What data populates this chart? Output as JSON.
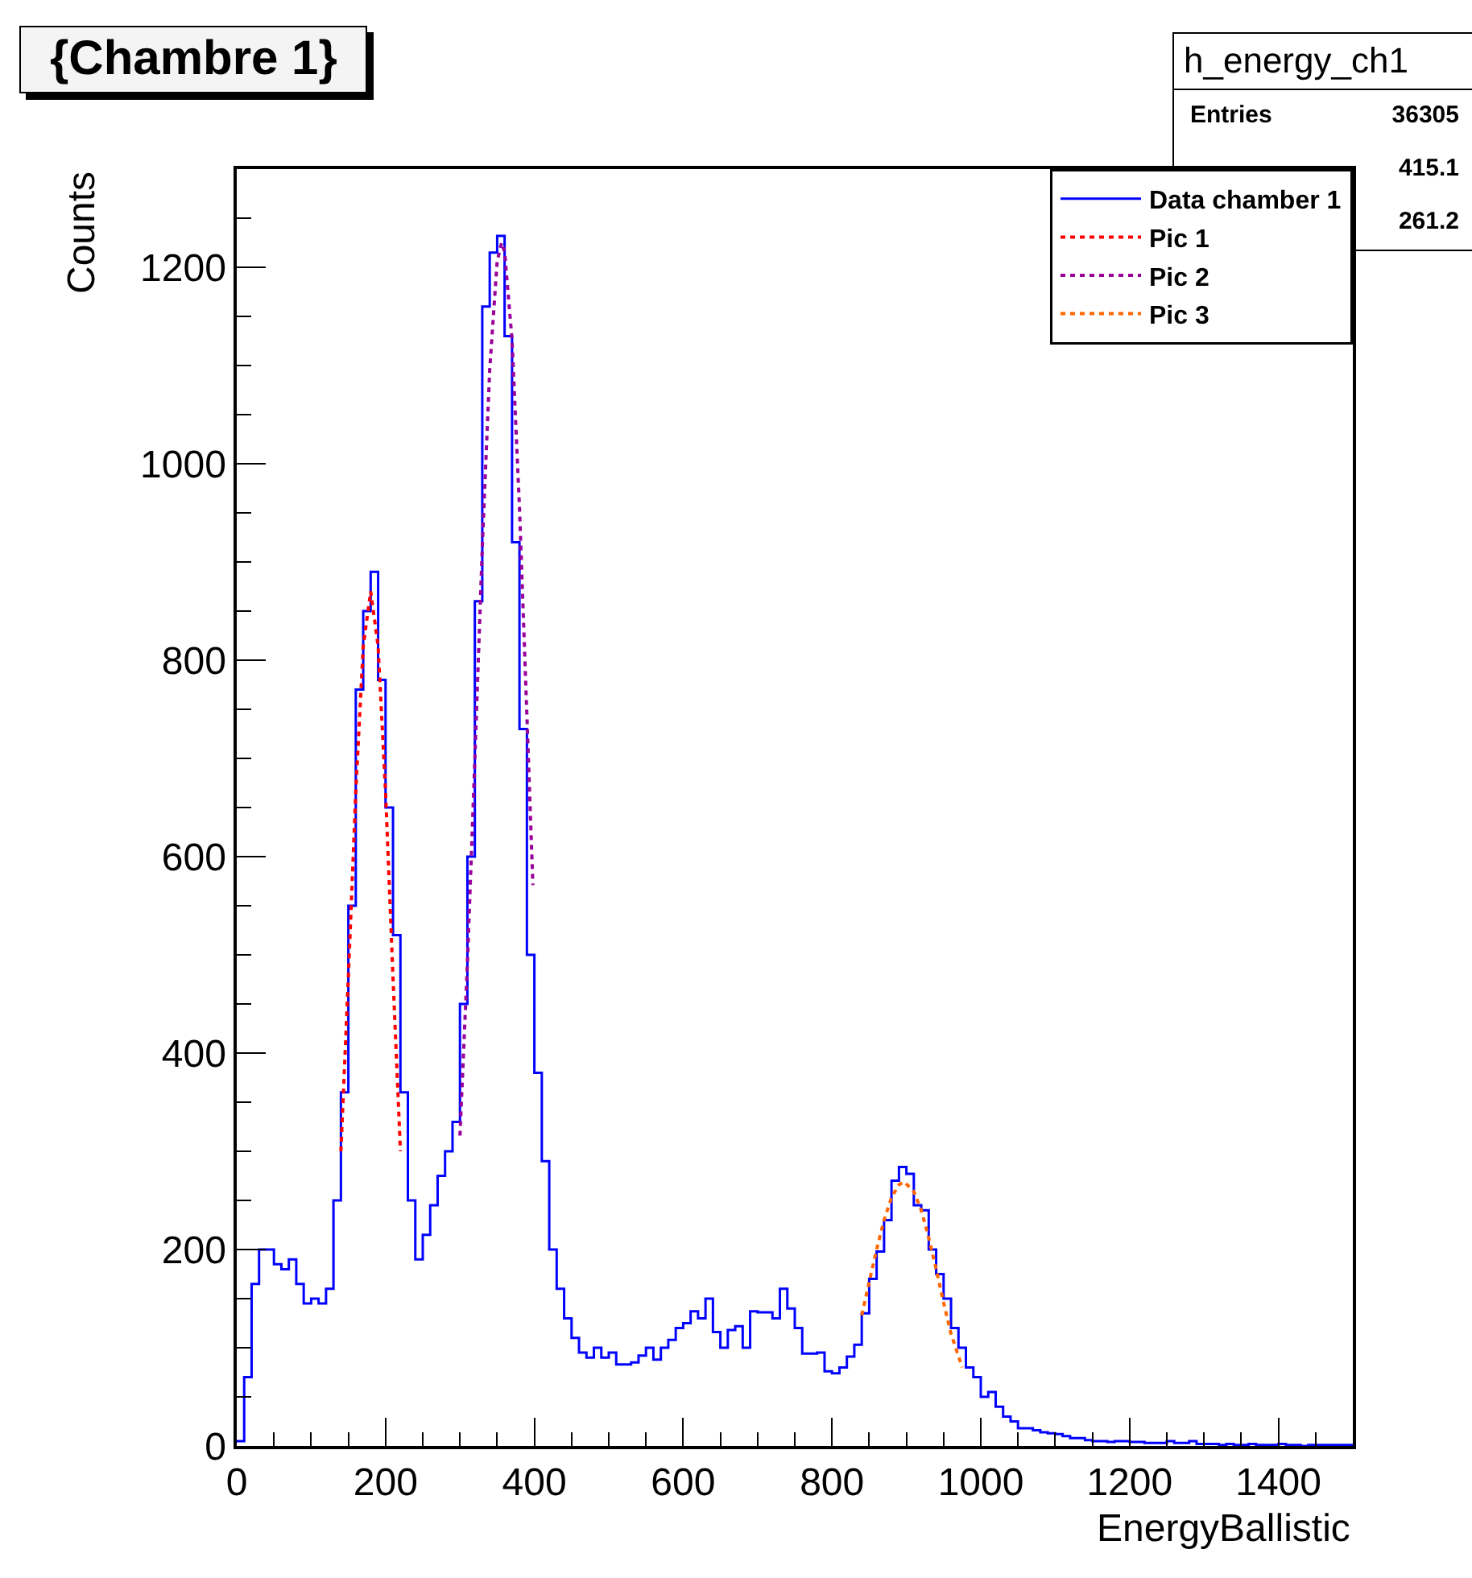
{
  "chart_data": {
    "type": "histogram",
    "title": "{Chambre 1}",
    "xlabel": "EnergyBallistic",
    "ylabel": "Counts",
    "annotations": [
      "h_energy_ch1",
      "Entries 36305",
      "415.1",
      "261.2"
    ],
    "xlim": [
      0,
      1500
    ],
    "xticks": [
      0,
      200,
      400,
      600,
      800,
      1000,
      1200,
      1400
    ],
    "ylim": [
      0,
      1300
    ],
    "yticks": [
      0,
      200,
      400,
      600,
      800,
      1000,
      1200
    ],
    "legend": "top right",
    "marker": "none",
    "bins": [
      0,
      10,
      20,
      30,
      40,
      50,
      60,
      70,
      80,
      90,
      100,
      110,
      120,
      130,
      140,
      150,
      160,
      170,
      180,
      190,
      200,
      210,
      220,
      230,
      240,
      250,
      260,
      270,
      280,
      290,
      300,
      310,
      320,
      330,
      340,
      350,
      360,
      370,
      380,
      390,
      400,
      410,
      420,
      430,
      440,
      450,
      460,
      470,
      480,
      490,
      500,
      510,
      520,
      530,
      540,
      550,
      560,
      570,
      580,
      590,
      600,
      610,
      620,
      630,
      640,
      650,
      660,
      670,
      680,
      690,
      700,
      710,
      720,
      730,
      740,
      750,
      760,
      770,
      780,
      790,
      800,
      810,
      820,
      830,
      840,
      850,
      860,
      870,
      880,
      890,
      900,
      910,
      920,
      930,
      940,
      950,
      960,
      970,
      980,
      990,
      1000,
      1010,
      1020,
      1030,
      1040,
      1050,
      1060,
      1070,
      1080,
      1090,
      1100,
      1110,
      1120,
      1130,
      1140,
      1150,
      1160,
      1170,
      1180,
      1190,
      1200,
      1210,
      1220,
      1230,
      1240,
      1250,
      1260,
      1270,
      1280,
      1290,
      1300,
      1310,
      1320,
      1330,
      1340,
      1350,
      1360,
      1370,
      1380,
      1390,
      1400,
      1410,
      1420,
      1430,
      1440,
      1450,
      1460,
      1470,
      1480,
      1490,
      1500
    ],
    "series": [
      {
        "name": "Data chamber 1",
        "color": "#0000ff",
        "values": [
          5,
          70,
          165,
          200,
          200,
          185,
          180,
          190,
          165,
          145,
          150,
          145,
          160,
          250,
          360,
          550,
          770,
          850,
          890,
          780,
          650,
          520,
          360,
          250,
          190,
          215,
          245,
          275,
          300,
          330,
          450,
          600,
          860,
          1160,
          1215,
          1232,
          1130,
          920,
          730,
          500,
          380,
          290,
          200,
          160,
          130,
          110,
          95,
          90,
          100,
          90,
          95,
          83,
          83,
          85,
          92,
          100,
          88,
          100,
          108,
          120,
          125,
          137,
          130,
          150,
          116,
          100,
          118,
          122,
          100,
          137,
          136,
          136,
          130,
          160,
          140,
          120,
          94,
          94,
          95,
          76,
          74,
          80,
          91,
          103,
          135,
          170,
          198,
          230,
          270,
          284,
          277,
          245,
          240,
          200,
          175,
          150,
          120,
          100,
          80,
          70,
          50,
          55,
          40,
          30,
          25,
          18,
          18,
          16,
          14,
          13,
          12,
          10,
          8,
          8,
          6,
          5,
          5,
          4,
          5,
          5,
          4,
          4,
          3,
          3,
          3,
          5,
          3,
          3,
          5,
          2,
          2,
          2,
          1,
          2,
          1,
          1,
          2,
          1,
          1,
          1,
          2,
          1,
          1,
          0,
          1,
          1,
          1,
          1,
          1,
          1
        ]
      },
      {
        "name": "Pic 1",
        "type": "line",
        "line_style": "dotted",
        "color": "#ff0000",
        "x": [
          140,
          150,
          160,
          170,
          180,
          190,
          200,
          210,
          220
        ],
        "values": [
          300,
          477,
          666,
          814,
          870,
          814,
          666,
          477,
          300
        ]
      },
      {
        "name": "Pic 2",
        "type": "line",
        "line_style": "dotted",
        "color": "#990099",
        "x": [
          300,
          310,
          320,
          330,
          340,
          350,
          356,
          360,
          370,
          380,
          390,
          398
        ],
        "values": [
          316,
          491,
          699,
          915,
          1096,
          1206,
          1225,
          1216,
          1126,
          955,
          743,
          571
        ]
      },
      {
        "name": "Pic 3",
        "type": "line",
        "line_style": "dotted",
        "color": "#ff6600",
        "x": [
          840,
          850,
          860,
          870,
          880,
          890,
          897,
          910,
          920,
          930,
          940,
          950,
          960,
          975
        ],
        "values": [
          133,
          167,
          200,
          230,
          253,
          266,
          269,
          259,
          240,
          212,
          180,
          146,
          114,
          80
        ]
      }
    ]
  }
}
